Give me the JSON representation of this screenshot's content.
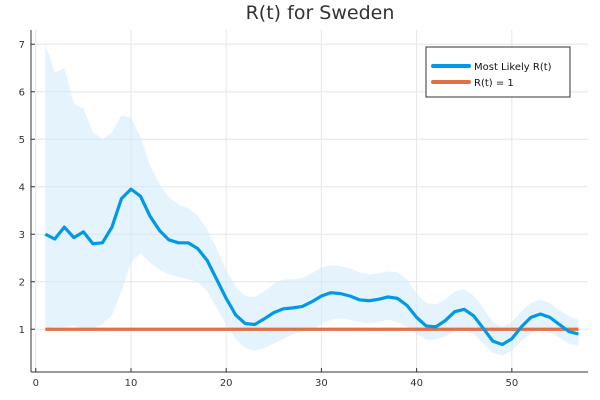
{
  "chart_data": {
    "type": "line",
    "title": "R(t) for Sweden",
    "xlabel": "",
    "ylabel": "",
    "xlim": [
      -0.5,
      58
    ],
    "ylim": [
      0.1,
      7.3
    ],
    "xticks": [
      0,
      10,
      20,
      30,
      40,
      50
    ],
    "yticks": [
      1,
      2,
      3,
      4,
      5,
      6,
      7
    ],
    "grid": true,
    "legend_position": "top-right",
    "colors": {
      "most_likely": "#0099e6",
      "band": "#cfe9fb",
      "reference": "#e26f46"
    },
    "series": [
      {
        "name": "Most Likely R(t)",
        "x": [
          1,
          2,
          3,
          4,
          5,
          6,
          7,
          8,
          9,
          10,
          11,
          12,
          13,
          14,
          15,
          16,
          17,
          18,
          19,
          20,
          21,
          22,
          23,
          24,
          25,
          26,
          27,
          28,
          29,
          30,
          31,
          32,
          33,
          34,
          35,
          36,
          37,
          38,
          39,
          40,
          41,
          42,
          43,
          44,
          45,
          46,
          47,
          48,
          49,
          50,
          51,
          52,
          53,
          54,
          55,
          56,
          57
        ],
        "values": [
          3.0,
          2.9,
          3.15,
          2.93,
          3.05,
          2.8,
          2.82,
          3.15,
          3.75,
          3.95,
          3.8,
          3.38,
          3.08,
          2.88,
          2.82,
          2.82,
          2.7,
          2.45,
          2.05,
          1.65,
          1.3,
          1.12,
          1.1,
          1.22,
          1.35,
          1.43,
          1.45,
          1.48,
          1.58,
          1.7,
          1.77,
          1.75,
          1.7,
          1.62,
          1.6,
          1.63,
          1.68,
          1.65,
          1.5,
          1.25,
          1.07,
          1.05,
          1.18,
          1.37,
          1.42,
          1.28,
          1.02,
          0.75,
          0.68,
          0.8,
          1.05,
          1.25,
          1.32,
          1.25,
          1.1,
          0.95,
          0.9
        ],
        "lower": [
          0.95,
          1.05,
          1.05,
          1.08,
          1.0,
          1.02,
          1.1,
          1.3,
          1.8,
          2.4,
          2.6,
          2.4,
          2.25,
          2.15,
          2.1,
          2.05,
          2.0,
          1.8,
          1.45,
          1.1,
          0.8,
          0.6,
          0.55,
          0.6,
          0.7,
          0.8,
          0.9,
          0.95,
          1.0,
          1.1,
          1.2,
          1.22,
          1.2,
          1.15,
          1.12,
          1.15,
          1.2,
          1.15,
          1.05,
          0.9,
          0.78,
          0.78,
          0.85,
          0.95,
          1.0,
          0.9,
          0.7,
          0.5,
          0.45,
          0.55,
          0.75,
          0.92,
          1.0,
          0.95,
          0.82,
          0.7,
          0.65
        ],
        "upper": [
          7.0,
          6.4,
          6.5,
          5.75,
          5.65,
          5.15,
          5.0,
          5.15,
          5.5,
          5.45,
          5.05,
          4.45,
          4.05,
          3.78,
          3.62,
          3.55,
          3.4,
          3.1,
          2.7,
          2.25,
          1.9,
          1.7,
          1.68,
          1.8,
          1.95,
          2.05,
          2.05,
          2.08,
          2.18,
          2.3,
          2.35,
          2.33,
          2.28,
          2.2,
          2.15,
          2.18,
          2.22,
          2.2,
          2.05,
          1.75,
          1.55,
          1.52,
          1.62,
          1.8,
          1.85,
          1.7,
          1.45,
          1.15,
          1.05,
          1.15,
          1.38,
          1.55,
          1.62,
          1.55,
          1.4,
          1.28,
          1.2
        ]
      },
      {
        "name": "R(t) = 1",
        "x": [
          1,
          57
        ],
        "values": [
          1,
          1
        ]
      }
    ]
  }
}
